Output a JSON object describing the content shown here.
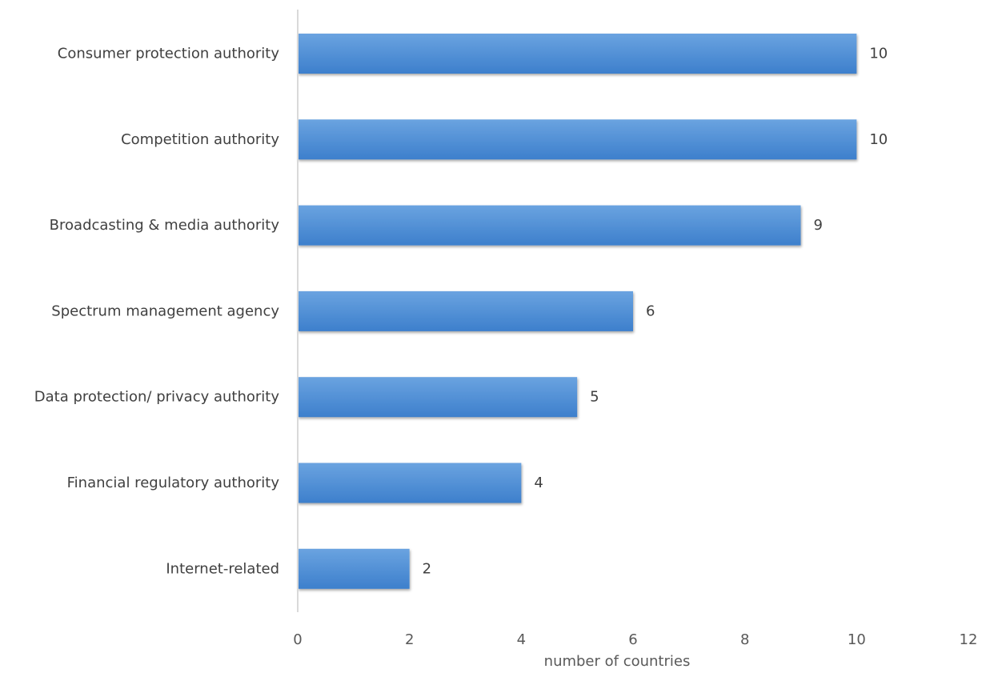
{
  "chart_data": {
    "type": "bar",
    "orientation": "horizontal",
    "categories": [
      "Consumer protection authority",
      "Competition authority",
      "Broadcasting & media authority",
      "Spectrum management agency",
      "Data protection/ privacy authority",
      "Financial regulatory authority",
      "Internet-related"
    ],
    "values": [
      10,
      10,
      9,
      6,
      5,
      4,
      2
    ],
    "data_labels": [
      "10",
      "10",
      "9",
      "6",
      "5",
      "4",
      "2"
    ],
    "title": "",
    "xlabel": "number of countries",
    "ylabel": "",
    "xlim": [
      0,
      12
    ],
    "x_ticks": [
      0,
      2,
      4,
      6,
      8,
      10,
      12
    ],
    "x_tick_labels": [
      "0",
      "2",
      "4",
      "6",
      "8",
      "10",
      "12"
    ],
    "grid": false,
    "legend": "none",
    "colors": {
      "bar_top": "#6aa3e0",
      "bar_bottom": "#3d7fcc",
      "axis_line": "#d9d9d9",
      "text": "#404040"
    }
  }
}
